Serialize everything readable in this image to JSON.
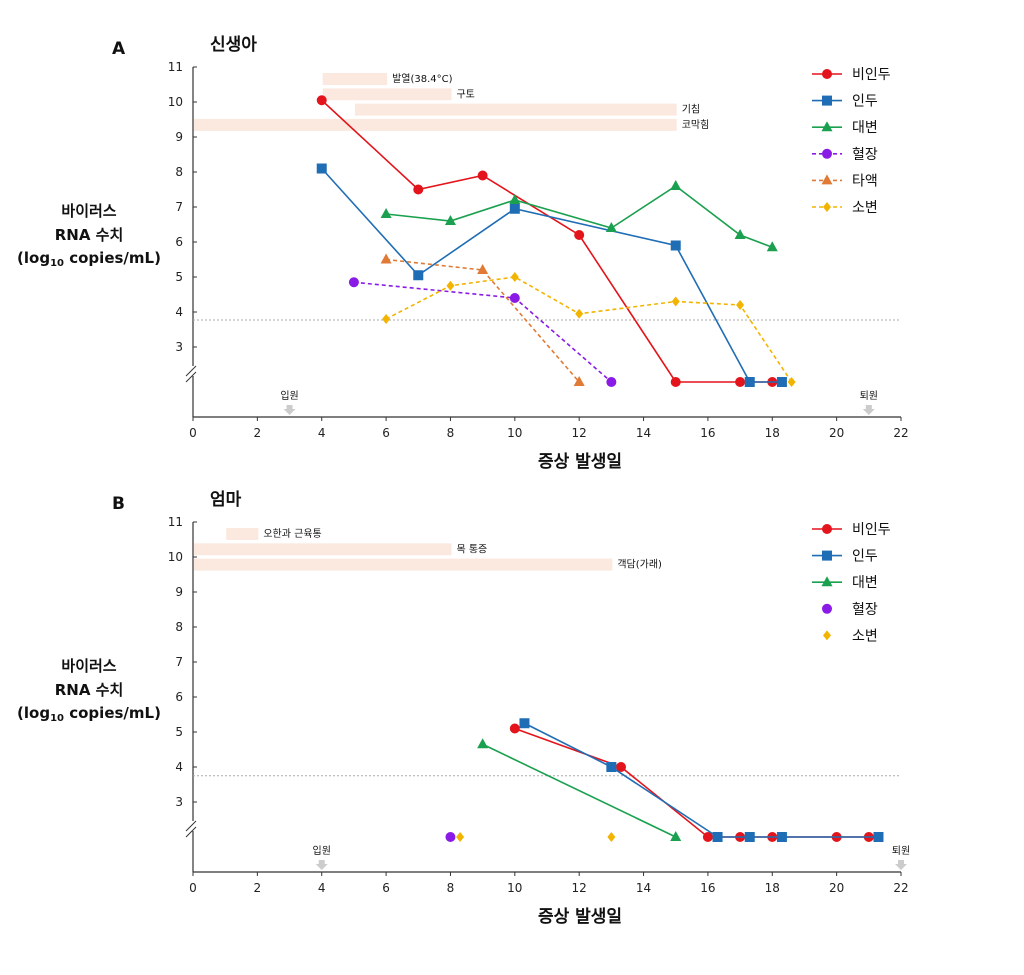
{
  "colors": {
    "비인두": "#e3141b",
    "인두": "#1f6db5",
    "대변": "#1aa04e",
    "혈장": "#8a1be6",
    "타액": "#e07a35",
    "소변": "#f3b400",
    "symptom_bar": "#fbe9e0",
    "detection_limit": "#aaaaaa"
  },
  "chart_data": [
    {
      "type": "line",
      "panel_label": "A",
      "title": "신생아",
      "xlabel": "증상 발생일",
      "ylabel": [
        "바이러스",
        "RNA 수치",
        "(log",
        "10",
        " copies/mL)"
      ],
      "xlim": [
        0,
        22
      ],
      "xticks": [
        0,
        2,
        4,
        6,
        8,
        10,
        12,
        14,
        16,
        18,
        20,
        22
      ],
      "ylim": [
        3,
        11
      ],
      "yticks": [
        3,
        4,
        5,
        6,
        7,
        8,
        9,
        10,
        11
      ],
      "y_axis_break": true,
      "undetected_marker": "ND",
      "detection_limit": 3.77,
      "legend_position": "top-right",
      "symptoms": [
        {
          "label": "발열(38.4°C)",
          "start": 4,
          "end": 6
        },
        {
          "label": "구토",
          "start": 4,
          "end": 8
        },
        {
          "label": "기침",
          "start": 5,
          "end": 15
        },
        {
          "label": "코막힘",
          "start": 0,
          "end": 15
        }
      ],
      "events": [
        {
          "label": "입원",
          "day": 3
        },
        {
          "label": "퇴원",
          "day": 21
        }
      ],
      "series": [
        {
          "name": "비인두",
          "marker": "circle",
          "line": "solid",
          "x": [
            4,
            7,
            9,
            12,
            15,
            17,
            18
          ],
          "y": [
            10.05,
            7.5,
            7.9,
            6.2,
            "ND",
            "ND",
            "ND"
          ]
        },
        {
          "name": "인두",
          "marker": "square",
          "line": "solid",
          "x": [
            4,
            7,
            10,
            15,
            17.3,
            18.3
          ],
          "y": [
            8.1,
            5.05,
            6.95,
            5.9,
            "ND",
            "ND"
          ]
        },
        {
          "name": "대변",
          "marker": "triangle",
          "line": "solid",
          "x": [
            6,
            8,
            10,
            13,
            15,
            17,
            18
          ],
          "y": [
            6.8,
            6.6,
            7.2,
            6.4,
            7.6,
            6.2,
            5.85
          ]
        },
        {
          "name": "혈장",
          "marker": "circle",
          "line": "dashed",
          "x": [
            5,
            10,
            13
          ],
          "y": [
            4.85,
            4.4,
            "ND"
          ]
        },
        {
          "name": "타액",
          "marker": "triangle",
          "line": "dashed",
          "x": [
            6,
            9,
            12
          ],
          "y": [
            5.5,
            5.2,
            "ND"
          ]
        },
        {
          "name": "소변",
          "marker": "diamond",
          "line": "dashed",
          "x": [
            6,
            8,
            10,
            12,
            15,
            17,
            18.6
          ],
          "y": [
            3.8,
            4.75,
            5.0,
            3.95,
            4.3,
            4.2,
            "ND"
          ]
        }
      ]
    },
    {
      "type": "line",
      "panel_label": "B",
      "title": "엄마",
      "xlabel": "증상 발생일",
      "ylabel": [
        "바이러스",
        "RNA 수치",
        "(log",
        "10",
        " copies/mL)"
      ],
      "xlim": [
        0,
        22
      ],
      "xticks": [
        0,
        2,
        4,
        6,
        8,
        10,
        12,
        14,
        16,
        18,
        20,
        22
      ],
      "ylim": [
        3,
        11
      ],
      "yticks": [
        3,
        4,
        5,
        6,
        7,
        8,
        9,
        10,
        11
      ],
      "y_axis_break": true,
      "undetected_marker": "ND",
      "detection_limit": 3.75,
      "legend_position": "top-right",
      "symptoms": [
        {
          "label": "오한과 근육통",
          "start": 1,
          "end": 2
        },
        {
          "label": "목 통증",
          "start": 0,
          "end": 8
        },
        {
          "label": "객담(가래)",
          "start": 0,
          "end": 13
        }
      ],
      "events": [
        {
          "label": "입원",
          "day": 4
        },
        {
          "label": "퇴원",
          "day": 22
        }
      ],
      "series": [
        {
          "name": "비인두",
          "marker": "circle",
          "line": "solid",
          "x": [
            10,
            13.3,
            16,
            17,
            18,
            20,
            21
          ],
          "y": [
            5.1,
            4.0,
            "ND",
            "ND",
            "ND",
            "ND",
            "ND"
          ]
        },
        {
          "name": "인두",
          "marker": "square",
          "line": "solid",
          "x": [
            10.3,
            13,
            16.3,
            17.3,
            18.3,
            21.3
          ],
          "y": [
            5.25,
            4.0,
            "ND",
            "ND",
            "ND",
            "ND"
          ]
        },
        {
          "name": "대변",
          "marker": "triangle",
          "line": "solid",
          "x": [
            9,
            15
          ],
          "y": [
            4.65,
            "ND"
          ]
        },
        {
          "name": "혈장",
          "marker": "circle",
          "line": "none",
          "x": [
            8
          ],
          "y": [
            "ND"
          ]
        },
        {
          "name": "소변",
          "marker": "diamond",
          "line": "none",
          "x": [
            8.3,
            13
          ],
          "y": [
            "ND",
            "ND"
          ]
        }
      ]
    }
  ]
}
